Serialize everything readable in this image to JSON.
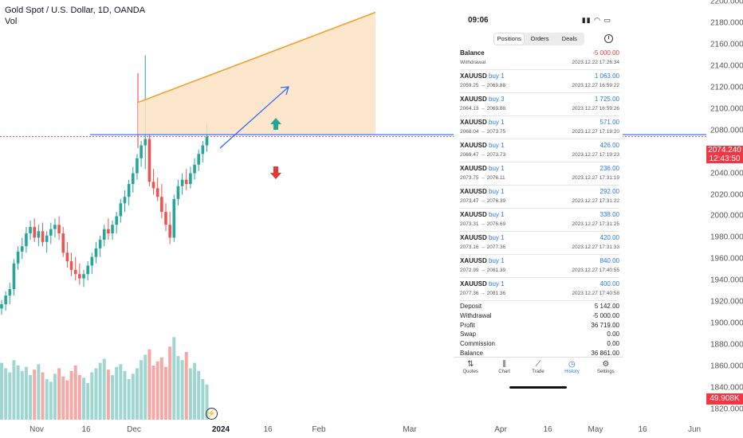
{
  "header": {
    "title": "Gold Spot / U.S. Dollar, 1D, OANDA",
    "volume_label": "Vol"
  },
  "price_axis": {
    "labels": [
      "2200.000",
      "2180.000",
      "2160.000",
      "2140.000",
      "2120.000",
      "2100.000",
      "2080.000",
      "2060.000",
      "2040.000",
      "2020.000",
      "2000.000",
      "1980.000",
      "1960.000",
      "1940.000",
      "1920.000",
      "1900.000",
      "1880.000",
      "1860.000",
      "1840.000",
      "1820.000"
    ],
    "current_price": "2074.240",
    "countdown": "12:43:50",
    "volume_value": "49.908K"
  },
  "time_axis": {
    "labels": [
      "Nov",
      "16",
      "Dec",
      "2024",
      "16",
      "Feb",
      "Mar",
      "Apr",
      "16",
      "May",
      "16",
      "Jun"
    ]
  },
  "colors": {
    "up": "#26a69a",
    "down": "#ef5350",
    "price_line": "#f23645",
    "trend_line": "#2962ff",
    "projection_fill": "#fde3c3",
    "projection_line": "#f59a23"
  },
  "phone": {
    "status_time": "09:06",
    "tabs": [
      "Positions",
      "Orders",
      "Deals"
    ],
    "active_tab": "Positions",
    "deals": [
      {
        "symbol": "Balance",
        "side": "",
        "detail": "Withdrawal",
        "profit": "-5 000.00",
        "time": "2023.12.22 17:26:34",
        "negative": true
      },
      {
        "symbol": "XAUUSD",
        "side": "buy 1",
        "detail": "2059.25 → 2069.88",
        "profit": "1 063.00",
        "time": "2023.12.27 16:59:22",
        "negative": false
      },
      {
        "symbol": "XAUUSD",
        "side": "buy 3",
        "detail": "2064.13 → 2069.88",
        "profit": "1 725.00",
        "time": "2023.12.27 16:59:26",
        "negative": false
      },
      {
        "symbol": "XAUUSD",
        "side": "buy 1",
        "detail": "2068.04 → 2073.75",
        "profit": "571.00",
        "time": "2023.12.27 17:19:20",
        "negative": false
      },
      {
        "symbol": "XAUUSD",
        "side": "buy 1",
        "detail": "2069.47 → 2073.73",
        "profit": "426.00",
        "time": "2023.12.27 17:19:23",
        "negative": false
      },
      {
        "symbol": "XAUUSD",
        "side": "buy 1",
        "detail": "2073.75 → 2076.11",
        "profit": "236.00",
        "time": "2023.12.27 17:31:19",
        "negative": false
      },
      {
        "symbol": "XAUUSD",
        "side": "buy 1",
        "detail": "2073.47 → 2076.39",
        "profit": "292.00",
        "time": "2023.12.27 17:31:22",
        "negative": false
      },
      {
        "symbol": "XAUUSD",
        "side": "buy 1",
        "detail": "2073.31 → 2076.69",
        "profit": "338.00",
        "time": "2023.12.27 17:31:25",
        "negative": false
      },
      {
        "symbol": "XAUUSD",
        "side": "buy 1",
        "detail": "2073.16 → 2077.36",
        "profit": "420.00",
        "time": "2023.12.27 17:31:33",
        "negative": false
      },
      {
        "symbol": "XAUUSD",
        "side": "buy 1",
        "detail": "2072.99 → 2081.39",
        "profit": "840.00",
        "time": "2023.12.27 17:40:55",
        "negative": false
      },
      {
        "symbol": "XAUUSD",
        "side": "buy 1",
        "detail": "2077.36 → 2081.36",
        "profit": "400.00",
        "time": "2023.12.27 17:40:58",
        "negative": false
      }
    ],
    "summary": [
      {
        "label": "Deposit",
        "value": "5 142.00"
      },
      {
        "label": "Withdrawal",
        "value": "-5 000.00"
      },
      {
        "label": "Profit",
        "value": "36 719.00"
      },
      {
        "label": "Swap",
        "value": "0.00"
      },
      {
        "label": "Commission",
        "value": "0.00"
      },
      {
        "label": "Balance",
        "value": "36 861.00"
      }
    ],
    "nav": [
      {
        "label": "Quotes",
        "icon": "arrows-updown-icon"
      },
      {
        "label": "Chart",
        "icon": "candles-icon"
      },
      {
        "label": "Trade",
        "icon": "trend-chart-icon"
      },
      {
        "label": "History",
        "icon": "history-icon"
      },
      {
        "label": "Settings",
        "icon": "gear-icon"
      }
    ],
    "active_nav": "History"
  },
  "chart_data": {
    "type": "candlestick",
    "series_unit": "USD/oz",
    "ylim": [
      1815,
      2210
    ],
    "candles": [
      [
        1914,
        1922,
        1908,
        1918
      ],
      [
        1918,
        1930,
        1912,
        1926
      ],
      [
        1926,
        1938,
        1918,
        1932
      ],
      [
        1932,
        1960,
        1926,
        1956
      ],
      [
        1956,
        1972,
        1950,
        1967
      ],
      [
        1967,
        1980,
        1960,
        1972
      ],
      [
        1972,
        1990,
        1966,
        1984
      ],
      [
        1984,
        1996,
        1978,
        1990
      ],
      [
        1990,
        1998,
        1976,
        1980
      ],
      [
        1980,
        1992,
        1972,
        1986
      ],
      [
        1986,
        1994,
        1972,
        1976
      ],
      [
        1976,
        1986,
        1966,
        1982
      ],
      [
        1982,
        1994,
        1974,
        1988
      ],
      [
        1988,
        1998,
        1980,
        1992
      ],
      [
        1992,
        2000,
        1978,
        1984
      ],
      [
        1984,
        1990,
        1962,
        1966
      ],
      [
        1966,
        1976,
        1952,
        1958
      ],
      [
        1958,
        1966,
        1944,
        1950
      ],
      [
        1950,
        1962,
        1940,
        1946
      ],
      [
        1946,
        1956,
        1936,
        1942
      ],
      [
        1942,
        1950,
        1934,
        1946
      ],
      [
        1946,
        1958,
        1940,
        1954
      ],
      [
        1954,
        1966,
        1946,
        1962
      ],
      [
        1962,
        1976,
        1956,
        1970
      ],
      [
        1970,
        1982,
        1962,
        1978
      ],
      [
        1978,
        1992,
        1972,
        1988
      ],
      [
        1988,
        1998,
        1978,
        1984
      ],
      [
        1984,
        1996,
        1978,
        1992
      ],
      [
        1992,
        2004,
        1984,
        2000
      ],
      [
        2000,
        2016,
        1994,
        2012
      ],
      [
        2012,
        2024,
        2004,
        2018
      ],
      [
        2018,
        2034,
        2010,
        2030
      ],
      [
        2030,
        2046,
        2022,
        2040
      ],
      [
        2040,
        2058,
        2034,
        2054
      ],
      [
        2054,
        2070,
        2046,
        2066
      ],
      [
        2066,
        2150,
        2044,
        2072
      ],
      [
        2072,
        2076,
        2028,
        2032
      ],
      [
        2032,
        2044,
        2020,
        2026
      ],
      [
        2026,
        2036,
        2014,
        2018
      ],
      [
        2018,
        2030,
        1998,
        2004
      ],
      [
        2004,
        2012,
        1986,
        1992
      ],
      [
        1992,
        2004,
        1974,
        1980
      ],
      [
        1980,
        2020,
        1976,
        2016
      ],
      [
        2016,
        2034,
        2010,
        2028
      ],
      [
        2028,
        2040,
        2020,
        2034
      ],
      [
        2034,
        2044,
        2024,
        2030
      ],
      [
        2030,
        2046,
        2026,
        2040
      ],
      [
        2040,
        2054,
        2034,
        2048
      ],
      [
        2048,
        2062,
        2042,
        2058
      ],
      [
        2058,
        2070,
        2050,
        2066
      ],
      [
        2066,
        2086,
        2060,
        2074
      ]
    ],
    "volumes": [
      42,
      38,
      35,
      44,
      40,
      36,
      39,
      33,
      37,
      41,
      35,
      30,
      28,
      34,
      38,
      32,
      29,
      36,
      40,
      33,
      31,
      27,
      35,
      38,
      42,
      45,
      37,
      33,
      39,
      41,
      36,
      30,
      34,
      38,
      44,
      48,
      52,
      40,
      43,
      46,
      39,
      54,
      61,
      47,
      44,
      50,
      38,
      42,
      36,
      30,
      26
    ],
    "horizontal_line": 2076,
    "projection_start_price": 2106,
    "projection_end_price": 2190
  }
}
